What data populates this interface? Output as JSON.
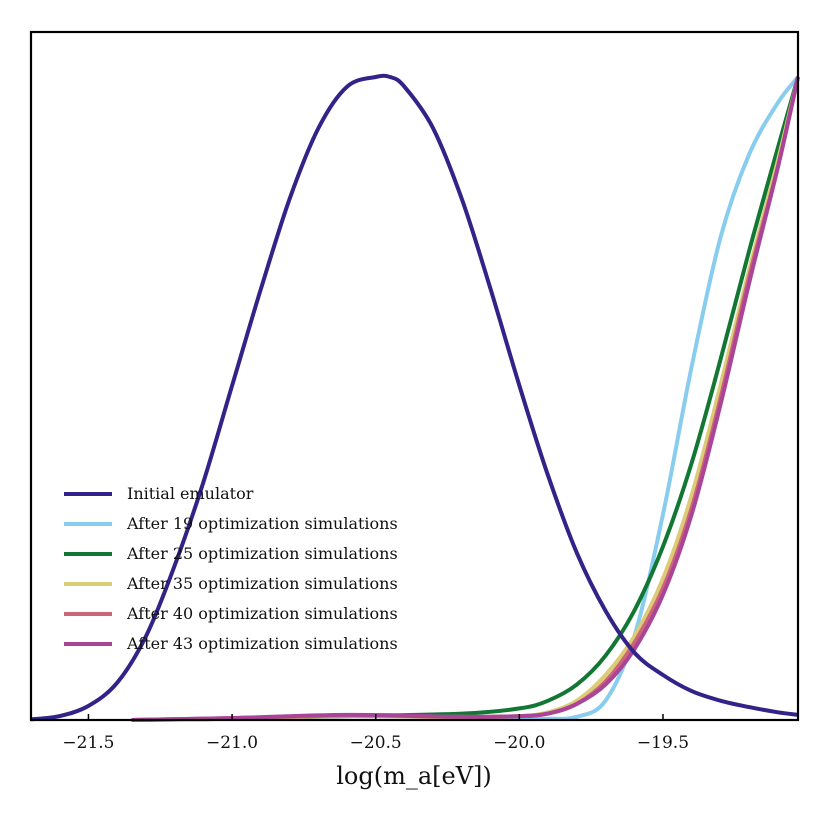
{
  "chart_data": {
    "type": "line",
    "title": "",
    "xlabel": "log(m_a[eV])",
    "ylabel": "",
    "xlim": [
      -21.7,
      -19.03
    ],
    "ylim": [
      0,
      1.07
    ],
    "xticks": [
      -21.5,
      -21.0,
      -20.5,
      -20.0,
      -19.5
    ],
    "xtick_labels": [
      "−21.5",
      "−21.0",
      "−20.5",
      "−20.0",
      "−19.5"
    ],
    "grid": false,
    "legend_position": "lower-left",
    "series": [
      {
        "name": "Initial emulator",
        "color": "#332288",
        "x": [
          -21.7,
          -21.6,
          -21.5,
          -21.4,
          -21.3,
          -21.2,
          -21.1,
          -21.0,
          -20.9,
          -20.8,
          -20.7,
          -20.6,
          -20.5,
          -20.45,
          -20.4,
          -20.3,
          -20.2,
          -20.1,
          -20.0,
          -19.9,
          -19.8,
          -19.7,
          -19.6,
          -19.5,
          -19.4,
          -19.3,
          -19.2,
          -19.1,
          -19.03
        ],
        "y": [
          0.001,
          0.006,
          0.022,
          0.058,
          0.13,
          0.24,
          0.37,
          0.52,
          0.67,
          0.81,
          0.92,
          0.985,
          1.0,
          1.0,
          0.985,
          0.92,
          0.81,
          0.67,
          0.52,
          0.38,
          0.26,
          0.17,
          0.105,
          0.07,
          0.045,
          0.03,
          0.02,
          0.012,
          0.008
        ]
      },
      {
        "name": "After 19 optimization simulations",
        "color": "#88CCEE",
        "x": [
          -21.35,
          -21.0,
          -20.6,
          -20.2,
          -20.0,
          -19.9,
          -19.8,
          -19.7,
          -19.6,
          -19.5,
          -19.4,
          -19.3,
          -19.2,
          -19.1,
          -19.03
        ],
        "y": [
          0.0,
          0.003,
          0.006,
          0.004,
          0.002,
          0.002,
          0.005,
          0.03,
          0.13,
          0.32,
          0.55,
          0.75,
          0.88,
          0.96,
          1.0
        ]
      },
      {
        "name": "After 25 optimization simulations",
        "color": "#117733",
        "x": [
          -21.35,
          -21.0,
          -20.6,
          -20.2,
          -20.0,
          -19.9,
          -19.8,
          -19.7,
          -19.6,
          -19.5,
          -19.4,
          -19.3,
          -19.2,
          -19.1,
          -19.03
        ],
        "y": [
          0.0,
          0.002,
          0.006,
          0.01,
          0.018,
          0.03,
          0.055,
          0.1,
          0.17,
          0.27,
          0.4,
          0.56,
          0.73,
          0.89,
          1.0
        ]
      },
      {
        "name": "After 35 optimization simulations",
        "color": "#DDCC77",
        "x": [
          -21.35,
          -21.0,
          -20.6,
          -20.2,
          -20.0,
          -19.9,
          -19.8,
          -19.7,
          -19.6,
          -19.5,
          -19.4,
          -19.3,
          -19.2,
          -19.1,
          -19.03
        ],
        "y": [
          0.0,
          0.002,
          0.006,
          0.004,
          0.006,
          0.012,
          0.03,
          0.07,
          0.13,
          0.22,
          0.35,
          0.52,
          0.7,
          0.87,
          1.0
        ]
      },
      {
        "name": "After 40 optimization simulations",
        "color": "#CC6677",
        "x": [
          -21.35,
          -21.0,
          -20.6,
          -20.2,
          -20.0,
          -19.9,
          -19.8,
          -19.7,
          -19.6,
          -19.5,
          -19.4,
          -19.3,
          -19.2,
          -19.1,
          -19.03
        ],
        "y": [
          0.0,
          0.003,
          0.007,
          0.005,
          0.006,
          0.01,
          0.025,
          0.06,
          0.12,
          0.205,
          0.33,
          0.5,
          0.69,
          0.86,
          1.0
        ]
      },
      {
        "name": "After 43 optimization simulations",
        "color": "#AA4499",
        "x": [
          -21.35,
          -21.0,
          -20.6,
          -20.2,
          -20.0,
          -19.9,
          -19.8,
          -19.7,
          -19.6,
          -19.5,
          -19.4,
          -19.3,
          -19.2,
          -19.1,
          -19.03
        ],
        "y": [
          0.0,
          0.003,
          0.008,
          0.005,
          0.006,
          0.01,
          0.025,
          0.055,
          0.11,
          0.195,
          0.32,
          0.49,
          0.68,
          0.86,
          1.0
        ]
      }
    ]
  }
}
